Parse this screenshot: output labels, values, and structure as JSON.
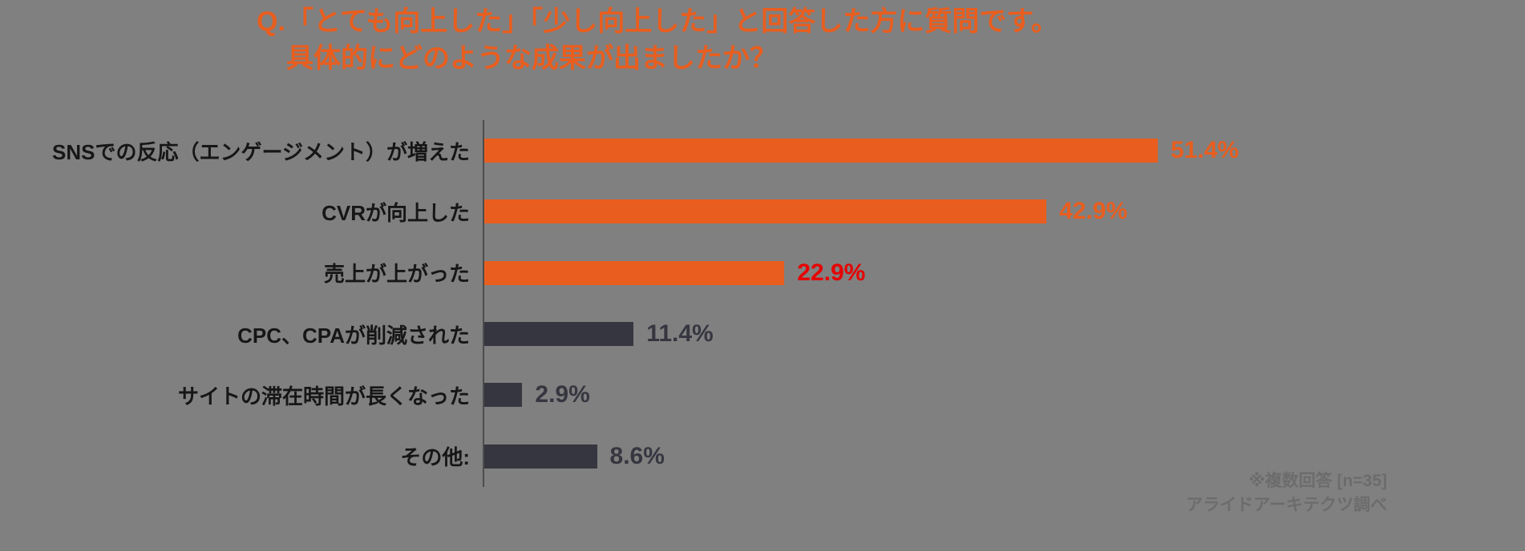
{
  "title": {
    "prefix": "Q.",
    "line1": "「とても向上した」「少し向上した」と回答した方に質問です。",
    "line2": "具体的にどのような成果が出ましたか？"
  },
  "chart_data": {
    "type": "bar",
    "orientation": "horizontal",
    "title": "Q. 「とても向上した」「少し向上した」と回答した方に質問です。具体的にどのような成果が出ましたか？",
    "categories": [
      "SNSでの反応（エンゲージメント）が増えた",
      "CVRが向上した",
      "売上が上がった",
      "CPC、CPAが削減された",
      "サイトの滞在時間が長くなった",
      "その他:"
    ],
    "values": [
      51.4,
      42.9,
      22.9,
      11.4,
      2.9,
      8.6
    ],
    "value_labels": [
      "51.4%",
      "42.9%",
      "22.9%",
      "11.4%",
      "2.9%",
      "8.6%"
    ],
    "bar_colors": [
      "#e95e1f",
      "#e95e1f",
      "#e95e1f",
      "#363640",
      "#363640",
      "#363640"
    ],
    "value_label_colors": [
      "#e95e1f",
      "#e95e1f",
      "#e60000",
      "#363640",
      "#363640",
      "#363640"
    ],
    "xlim": [
      0,
      55
    ],
    "grid": false,
    "legend": false,
    "value_labels_position": "end-of-bar"
  },
  "footnote": {
    "line1": "※複数回答 [n=35]",
    "line2": "アライドアーキテクツ調べ"
  },
  "colors": {
    "background": "#808080",
    "title": "#e95e1f",
    "axis": "#4c4c4c",
    "category_label": "#161616",
    "footnote": "#6c6c6c",
    "orange_bar": "#e95e1f",
    "dark_bar": "#363640",
    "highlight_value": "#e60000"
  }
}
